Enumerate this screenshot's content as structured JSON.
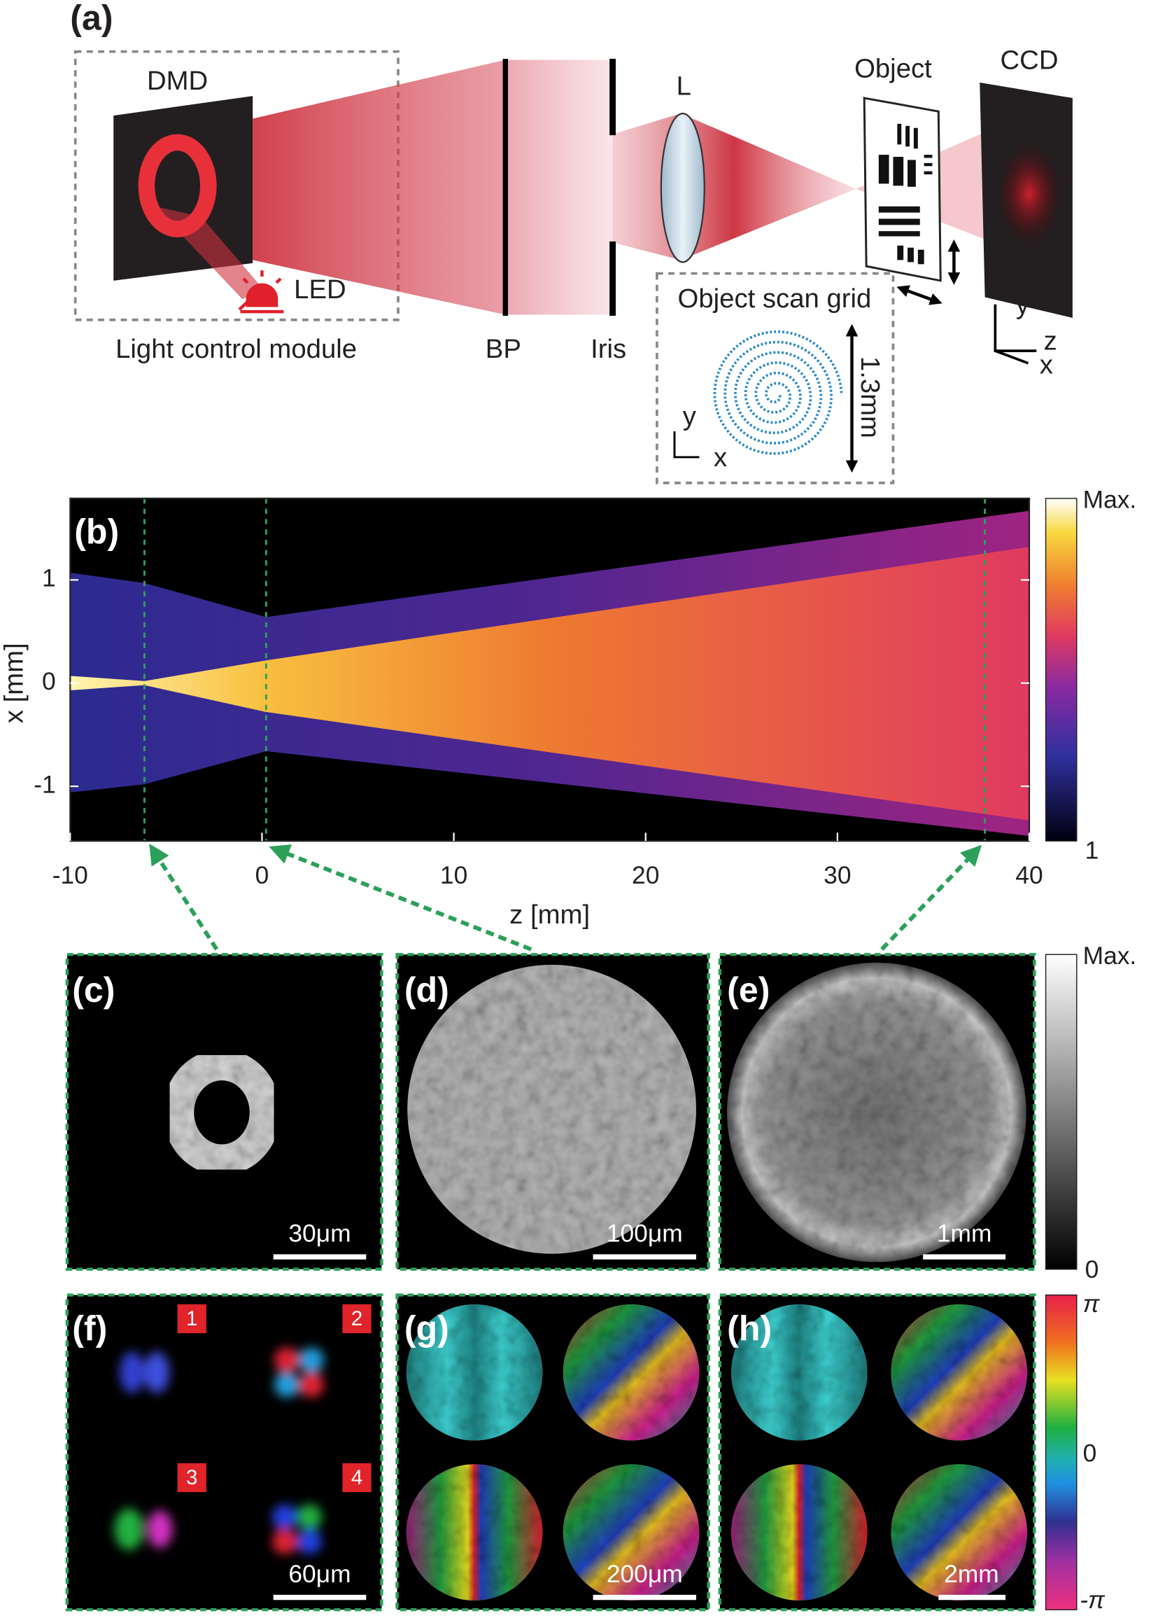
{
  "panel_a": {
    "label": "(a)",
    "dmd": "DMD",
    "led": "LED",
    "module": "Light control module",
    "bp": "BP",
    "iris": "Iris",
    "lens": "L",
    "object": "Object",
    "ccd": "CCD",
    "scan_grid": {
      "title": "Object scan grid",
      "size": "1.3mm",
      "axis_y": "y",
      "axis_x": "x"
    },
    "ccd_axes": {
      "y": "y",
      "z": "z",
      "x": "x"
    }
  },
  "panel_b": {
    "label": "(b)",
    "xlabel": "z [mm]",
    "ylabel": "x [mm]",
    "xlim": [
      -10,
      40
    ],
    "ylim": [
      -1.53,
      1.79
    ],
    "xticks": [
      -10,
      0,
      10,
      20,
      30,
      40
    ],
    "yticks": [
      -1,
      0,
      1
    ],
    "colorbar": {
      "max": "Max.",
      "min": "1"
    }
  },
  "panels": [
    {
      "label": "(c)",
      "scalebar": "30μm"
    },
    {
      "label": "(d)",
      "scalebar": "100μm"
    },
    {
      "label": "(e)",
      "scalebar": "1mm"
    },
    {
      "label": "(f)",
      "scalebar": "60μm",
      "badges": [
        "1",
        "2",
        "3",
        "4"
      ]
    },
    {
      "label": "(g)",
      "scalebar": "200μm"
    },
    {
      "label": "(h)",
      "scalebar": "2mm"
    }
  ],
  "gray_colorbar": {
    "max": "Max.",
    "min": "0"
  },
  "phase_colorbar": {
    "max": "π",
    "mid": "0",
    "min": "-π"
  }
}
